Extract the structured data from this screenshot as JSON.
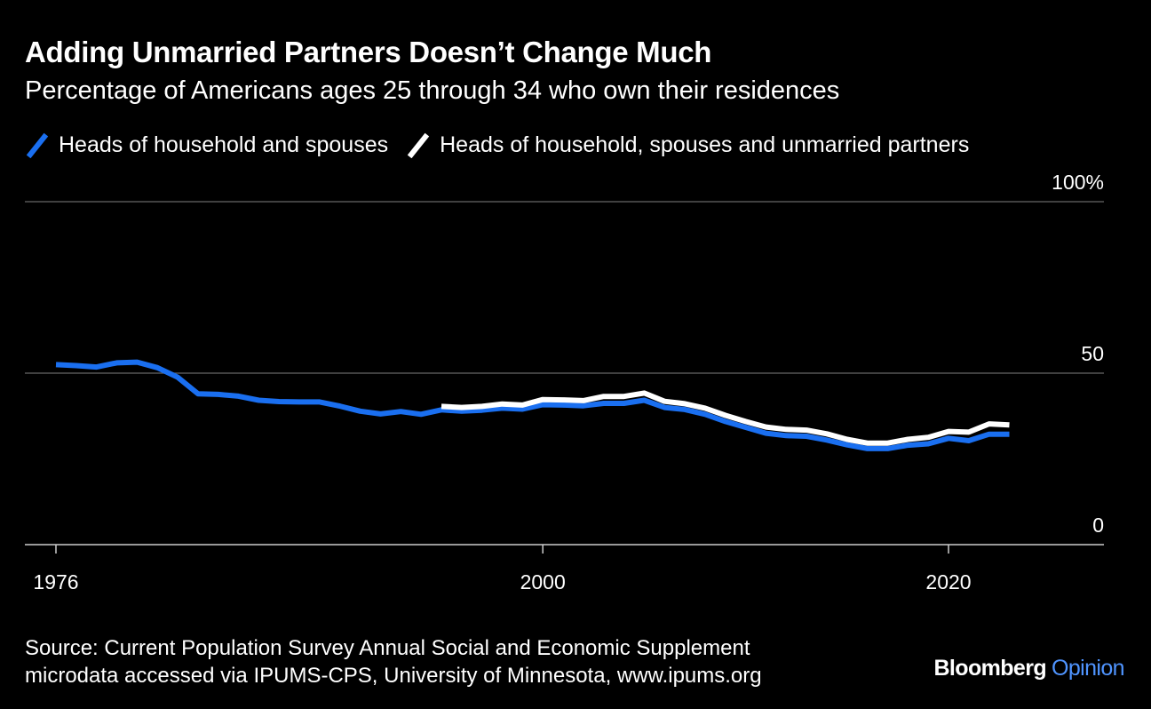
{
  "header": {
    "title": "Adding Unmarried Partners Doesn’t Change Much",
    "subtitle": "Percentage of Americans ages 25 through 34 who own their residences"
  },
  "footer": {
    "source_line1": "Source: Current Population Survey Annual Social and Economic Supplement",
    "source_line2": "microdata accessed via IPUMS-CPS, University of Minnesota, www.ipums.org",
    "brand_bloomberg": "Bloomberg",
    "brand_opinion": "Opinion"
  },
  "colors": {
    "background": "#000000",
    "blue": "#1a6ff0",
    "white": "#ffffff",
    "opinion_blue": "#4f94ff",
    "grid": "#666666"
  },
  "chart_data": {
    "type": "line",
    "ylim": [
      0,
      100
    ],
    "xlim": [
      1976,
      2026
    ],
    "y_ticks": [
      0,
      50,
      100
    ],
    "y_tick_labels": [
      "0",
      "50",
      "100%"
    ],
    "x_ticks": [
      1976,
      2000,
      2020
    ],
    "x_tick_labels": [
      "1976",
      "2000",
      "2020"
    ],
    "grid": true,
    "legend_position": "top-left",
    "series": [
      {
        "name": "Heads of household and spouses",
        "color": "#1a6ff0",
        "x": [
          1976,
          1977,
          1978,
          1979,
          1980,
          1981,
          1982,
          1983,
          1984,
          1985,
          1986,
          1987,
          1988,
          1989,
          1990,
          1991,
          1992,
          1993,
          1994,
          1995,
          1996,
          1997,
          1998,
          1999,
          2000,
          2001,
          2002,
          2003,
          2004,
          2005,
          2006,
          2007,
          2008,
          2009,
          2010,
          2011,
          2012,
          2013,
          2014,
          2015,
          2016,
          2017,
          2018,
          2019,
          2020,
          2021,
          2022,
          2023
        ],
        "values": [
          52.5,
          52.2,
          51.8,
          53.0,
          53.2,
          51.6,
          48.8,
          44.0,
          43.8,
          43.3,
          42.1,
          41.7,
          41.6,
          41.6,
          40.4,
          38.9,
          38.1,
          38.8,
          38.0,
          39.3,
          38.9,
          39.2,
          39.8,
          39.5,
          40.8,
          40.7,
          40.5,
          41.2,
          41.2,
          42.1,
          40.0,
          39.4,
          38.0,
          35.9,
          34.2,
          32.5,
          31.8,
          31.6,
          30.5,
          29.1,
          28.0,
          28.0,
          29.0,
          29.4,
          31.0,
          30.3,
          32.2,
          32.2
        ]
      },
      {
        "name": "Heads of household, spouses and unmarried partners",
        "color": "#ffffff",
        "x": [
          1995,
          1996,
          1997,
          1998,
          1999,
          2000,
          2001,
          2002,
          2003,
          2004,
          2005,
          2006,
          2007,
          2008,
          2009,
          2010,
          2011,
          2012,
          2013,
          2014,
          2015,
          2016,
          2017,
          2018,
          2019,
          2020,
          2021,
          2022,
          2023
        ],
        "values": [
          40.3,
          40.0,
          40.3,
          41.0,
          40.7,
          42.3,
          42.2,
          42.0,
          43.2,
          43.2,
          44.2,
          41.8,
          41.1,
          39.8,
          37.7,
          35.9,
          34.3,
          33.6,
          33.4,
          32.3,
          30.7,
          29.6,
          29.6,
          30.7,
          31.3,
          33.0,
          32.8,
          35.2,
          34.9
        ]
      }
    ]
  }
}
